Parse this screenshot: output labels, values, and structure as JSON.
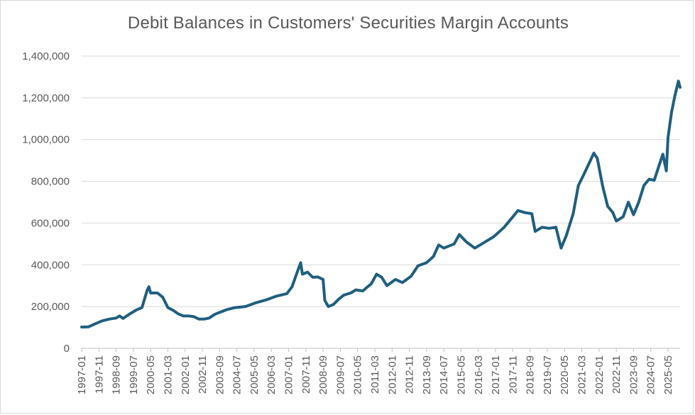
{
  "chart_data": {
    "type": "line",
    "title": "Debit Balances in Customers' Securities Margin Accounts",
    "xlabel": "",
    "ylabel": "",
    "ylim": [
      0,
      1400000
    ],
    "yticks": [
      "0",
      "200,000",
      "400,000",
      "600,000",
      "800,000",
      "1,000,000",
      "1,200,000",
      "1,400,000"
    ],
    "xticks": [
      "1997-01",
      "1997-11",
      "1998-09",
      "1999-07",
      "2000-05",
      "2001-03",
      "2002-01",
      "2002-11",
      "2003-09",
      "2004-07",
      "2005-05",
      "2006-03",
      "2007-01",
      "2007-11",
      "2008-09",
      "2009-07",
      "2010-05",
      "2011-03",
      "2012-01",
      "2012-11",
      "2013-09",
      "2014-07",
      "2015-05",
      "2016-03",
      "2017-01",
      "2017-11",
      "2018-09",
      "2019-07",
      "2020-05",
      "2021-03",
      "2022-01",
      "2022-11",
      "2023-09",
      "2024-07",
      "2025-05"
    ],
    "grid": true,
    "legend": "none",
    "color": "#1f5f7f",
    "series": [
      {
        "name": "Debit Balances",
        "points": [
          [
            "1997-01",
            102000
          ],
          [
            "1997-05",
            103000
          ],
          [
            "1997-09",
            118000
          ],
          [
            "1998-01",
            132000
          ],
          [
            "1998-05",
            140000
          ],
          [
            "1998-09",
            145000
          ],
          [
            "1998-11",
            155000
          ],
          [
            "1999-01",
            143000
          ],
          [
            "1999-05",
            165000
          ],
          [
            "1999-09",
            185000
          ],
          [
            "1999-12",
            195000
          ],
          [
            "2000-03",
            278000
          ],
          [
            "2000-04",
            295000
          ],
          [
            "2000-05",
            265000
          ],
          [
            "2000-09",
            265000
          ],
          [
            "2000-12",
            245000
          ],
          [
            "2001-03",
            195000
          ],
          [
            "2001-06",
            182000
          ],
          [
            "2001-09",
            165000
          ],
          [
            "2001-12",
            155000
          ],
          [
            "2002-03",
            155000
          ],
          [
            "2002-06",
            152000
          ],
          [
            "2002-09",
            140000
          ],
          [
            "2002-12",
            140000
          ],
          [
            "2003-03",
            145000
          ],
          [
            "2003-06",
            162000
          ],
          [
            "2003-09",
            172000
          ],
          [
            "2004-01",
            185000
          ],
          [
            "2004-06",
            195000
          ],
          [
            "2004-12",
            200000
          ],
          [
            "2005-06",
            218000
          ],
          [
            "2005-12",
            232000
          ],
          [
            "2006-06",
            250000
          ],
          [
            "2006-12",
            262000
          ],
          [
            "2007-03",
            295000
          ],
          [
            "2007-06",
            365000
          ],
          [
            "2007-08",
            410000
          ],
          [
            "2007-09",
            355000
          ],
          [
            "2007-12",
            365000
          ],
          [
            "2008-03",
            340000
          ],
          [
            "2008-06",
            342000
          ],
          [
            "2008-09",
            330000
          ],
          [
            "2008-10",
            230000
          ],
          [
            "2008-12",
            200000
          ],
          [
            "2009-03",
            210000
          ],
          [
            "2009-06",
            235000
          ],
          [
            "2009-09",
            255000
          ],
          [
            "2010-01",
            265000
          ],
          [
            "2010-04",
            280000
          ],
          [
            "2010-08",
            275000
          ],
          [
            "2011-01",
            310000
          ],
          [
            "2011-04",
            355000
          ],
          [
            "2011-07",
            340000
          ],
          [
            "2011-10",
            300000
          ],
          [
            "2012-03",
            330000
          ],
          [
            "2012-07",
            315000
          ],
          [
            "2012-12",
            345000
          ],
          [
            "2013-04",
            395000
          ],
          [
            "2013-09",
            410000
          ],
          [
            "2014-01",
            440000
          ],
          [
            "2014-04",
            495000
          ],
          [
            "2014-07",
            480000
          ],
          [
            "2015-01",
            500000
          ],
          [
            "2015-04",
            545000
          ],
          [
            "2015-08",
            510000
          ],
          [
            "2016-01",
            480000
          ],
          [
            "2016-06",
            505000
          ],
          [
            "2016-12",
            535000
          ],
          [
            "2017-06",
            580000
          ],
          [
            "2017-12",
            640000
          ],
          [
            "2018-02",
            660000
          ],
          [
            "2018-06",
            650000
          ],
          [
            "2018-10",
            645000
          ],
          [
            "2018-12",
            560000
          ],
          [
            "2019-04",
            580000
          ],
          [
            "2019-08",
            575000
          ],
          [
            "2019-12",
            580000
          ],
          [
            "2020-03",
            480000
          ],
          [
            "2020-06",
            540000
          ],
          [
            "2020-10",
            645000
          ],
          [
            "2021-01",
            780000
          ],
          [
            "2021-04",
            830000
          ],
          [
            "2021-08",
            900000
          ],
          [
            "2021-10",
            935000
          ],
          [
            "2021-12",
            910000
          ],
          [
            "2022-03",
            780000
          ],
          [
            "2022-06",
            680000
          ],
          [
            "2022-09",
            650000
          ],
          [
            "2022-11",
            610000
          ],
          [
            "2023-03",
            630000
          ],
          [
            "2023-06",
            700000
          ],
          [
            "2023-09",
            640000
          ],
          [
            "2023-12",
            700000
          ],
          [
            "2024-03",
            780000
          ],
          [
            "2024-06",
            810000
          ],
          [
            "2024-09",
            805000
          ],
          [
            "2024-12",
            880000
          ],
          [
            "2025-02",
            930000
          ],
          [
            "2025-04",
            850000
          ],
          [
            "2025-05",
            1010000
          ],
          [
            "2025-07",
            1130000
          ],
          [
            "2025-09",
            1210000
          ],
          [
            "2025-11",
            1280000
          ],
          [
            "2025-12",
            1250000
          ]
        ]
      }
    ]
  }
}
